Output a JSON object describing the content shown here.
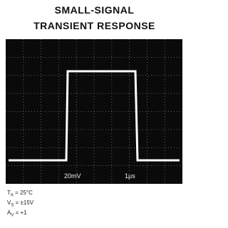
{
  "header": {
    "title_lines": [
      "SMALL-SIGNAL",
      "TRANSIENT RESPONSE"
    ]
  },
  "scope": {
    "vertical_scale": "20mV",
    "horizontal_scale": "1μs"
  },
  "conditions": [
    {
      "symbol": "T",
      "subscript": "A",
      "value": " = 25°C"
    },
    {
      "symbol": "V",
      "subscript": "S",
      "value": " = ±15V"
    },
    {
      "symbol": "A",
      "subscript": "V",
      "value": " = +1"
    }
  ]
}
